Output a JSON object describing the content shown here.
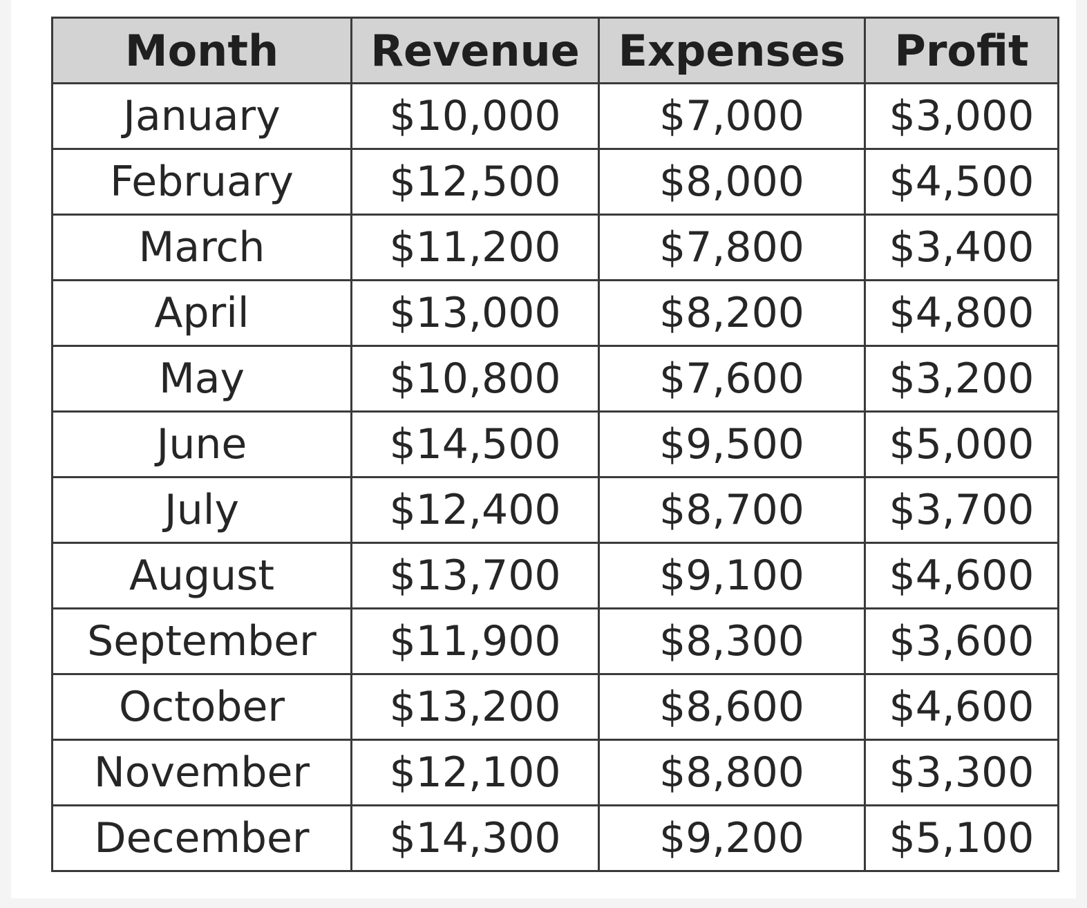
{
  "table": {
    "headers": {
      "month": "Month",
      "revenue": "Revenue",
      "expenses": "Expenses",
      "profit": "Profit"
    },
    "rows": [
      {
        "month": "January",
        "revenue": "$10,000",
        "expenses": "$7,000",
        "profit": "$3,000"
      },
      {
        "month": "February",
        "revenue": "$12,500",
        "expenses": "$8,000",
        "profit": "$4,500"
      },
      {
        "month": "March",
        "revenue": "$11,200",
        "expenses": "$7,800",
        "profit": "$3,400"
      },
      {
        "month": "April",
        "revenue": "$13,000",
        "expenses": "$8,200",
        "profit": "$4,800"
      },
      {
        "month": "May",
        "revenue": "$10,800",
        "expenses": "$7,600",
        "profit": "$3,200"
      },
      {
        "month": "June",
        "revenue": "$14,500",
        "expenses": "$9,500",
        "profit": "$5,000"
      },
      {
        "month": "July",
        "revenue": "$12,400",
        "expenses": "$8,700",
        "profit": "$3,700"
      },
      {
        "month": "August",
        "revenue": "$13,700",
        "expenses": "$9,100",
        "profit": "$4,600"
      },
      {
        "month": "September",
        "revenue": "$11,900",
        "expenses": "$8,300",
        "profit": "$3,600"
      },
      {
        "month": "October",
        "revenue": "$13,200",
        "expenses": "$8,600",
        "profit": "$4,600"
      },
      {
        "month": "November",
        "revenue": "$12,100",
        "expenses": "$8,800",
        "profit": "$3,300"
      },
      {
        "month": "December",
        "revenue": "$14,300",
        "expenses": "$9,200",
        "profit": "$5,100"
      }
    ]
  }
}
